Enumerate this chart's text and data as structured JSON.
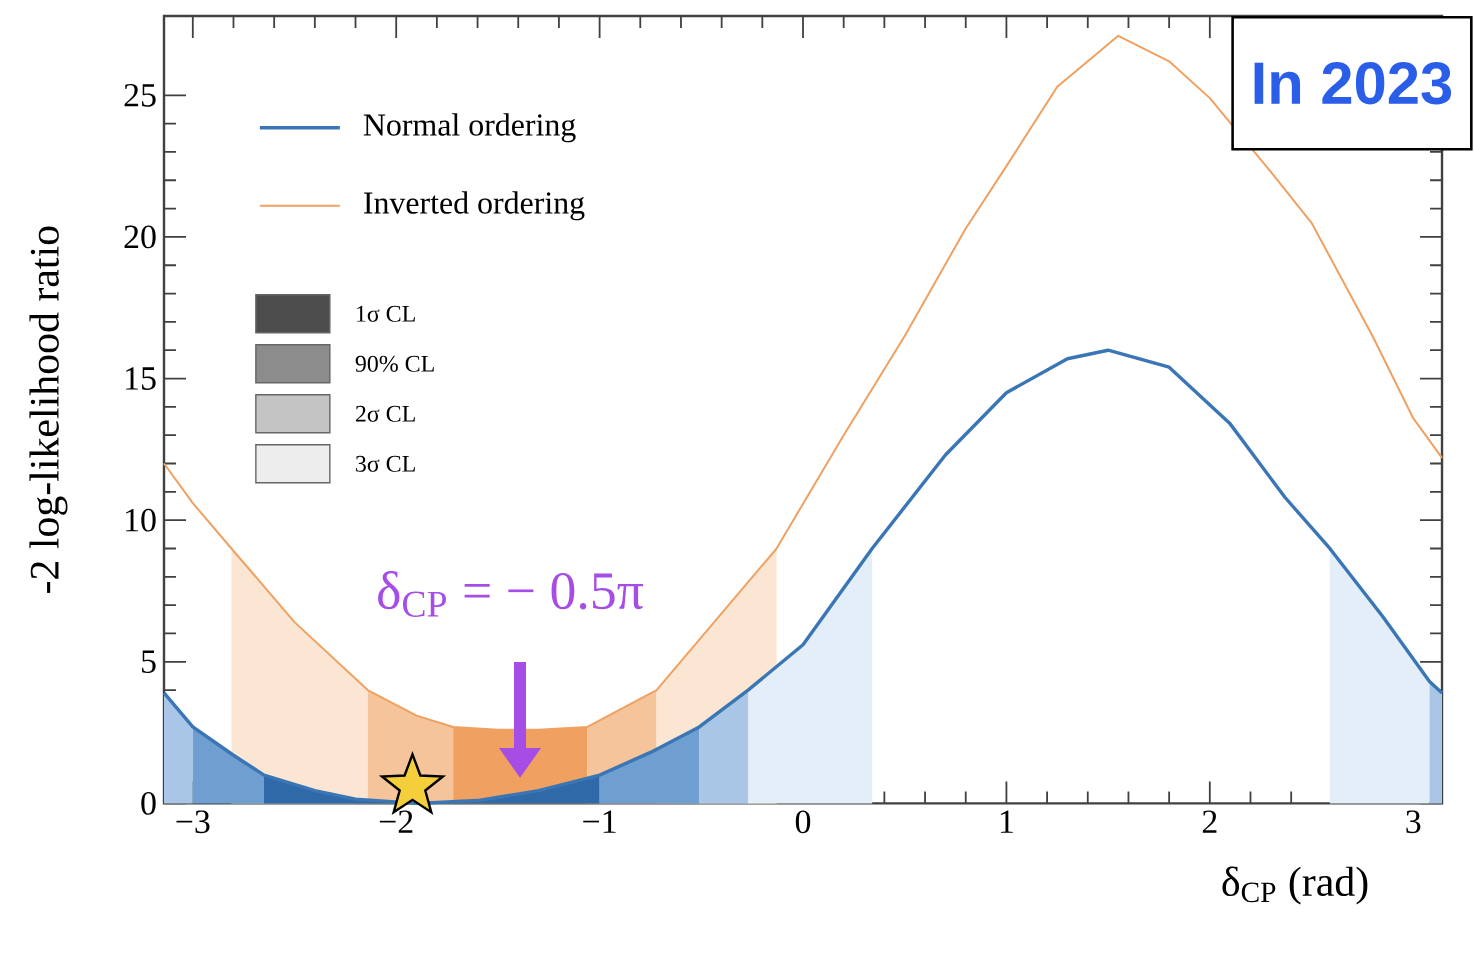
{
  "chart_data": {
    "type": "line",
    "xlabel": "δ$_{CP}$ (rad)",
    "ylabel": "-2 log-likelihood ratio",
    "xlim": [
      -3.1416,
      3.1416
    ],
    "ylim": [
      0,
      27.8
    ],
    "xticks": [
      {
        "value": -3,
        "label": "−3"
      },
      {
        "value": -2,
        "label": "−2"
      },
      {
        "value": -1,
        "label": "−1"
      },
      0,
      1,
      2,
      3
    ],
    "yticks": [
      0,
      5,
      10,
      15,
      20,
      25
    ],
    "legend": "top left",
    "series": [
      {
        "name": "Normal ordering",
        "color": "#3a76b5",
        "line_style": "solid",
        "x": [
          -3.1416,
          -3.0,
          -2.8,
          -2.65,
          -2.4,
          -2.2,
          -1.9,
          -1.6,
          -1.3,
          -1.0,
          -0.75,
          -0.51,
          -0.27,
          0.0,
          0.34,
          0.7,
          1.0,
          1.3,
          1.5,
          1.8,
          2.1,
          2.37,
          2.59,
          2.85,
          3.08,
          3.1416
        ],
        "values": [
          3.9,
          2.7,
          1.7,
          1.0,
          0.45,
          0.15,
          0.0,
          0.1,
          0.45,
          1.0,
          1.8,
          2.7,
          4.0,
          5.6,
          9.0,
          12.3,
          14.5,
          15.7,
          16.0,
          15.4,
          13.4,
          10.8,
          9.0,
          6.6,
          4.3,
          3.9
        ]
      },
      {
        "name": "Inverted ordering",
        "color": "#f0a060",
        "line_style": "solid",
        "x": [
          -3.1416,
          -3.0,
          -2.81,
          -2.5,
          -2.14,
          -1.9,
          -1.72,
          -1.5,
          -1.3,
          -1.06,
          -0.72,
          -0.13,
          0.2,
          0.5,
          0.8,
          1.0,
          1.25,
          1.55,
          1.8,
          2.0,
          2.3,
          2.5,
          2.8,
          3.0,
          3.1416
        ],
        "values": [
          12.0,
          10.6,
          9.0,
          6.4,
          4.0,
          3.1,
          2.7,
          2.6,
          2.6,
          2.7,
          4.0,
          9.0,
          13.0,
          16.5,
          20.3,
          22.5,
          25.3,
          27.1,
          26.2,
          24.9,
          22.3,
          20.5,
          16.5,
          13.6,
          12.2
        ]
      },
      {
        "type": "area",
        "color": "#fbe6d3",
        "x": [
          -2.81,
          -2.5,
          -2.14
        ],
        "values": [
          9.0,
          6.4,
          4.0
        ]
      },
      {
        "type": "area",
        "color": "#f6c49a",
        "x": [
          -2.14,
          -1.9,
          -1.72
        ],
        "values": [
          4.0,
          3.1,
          2.7
        ]
      },
      {
        "type": "area",
        "color": "#f0a060",
        "x": [
          -1.72,
          -1.5,
          -1.3,
          -1.06
        ],
        "values": [
          2.7,
          2.6,
          2.6,
          2.7
        ]
      },
      {
        "type": "area",
        "color": "#f6c49a",
        "x": [
          -1.06,
          -0.72
        ],
        "values": [
          2.7,
          4.0
        ]
      },
      {
        "type": "area",
        "color": "#fbe6d3",
        "x": [
          -0.72,
          -0.13
        ],
        "values": [
          4.0,
          9.0
        ]
      },
      {
        "type": "area",
        "color": "#a9c6e6",
        "x": [
          -3.1416,
          -3.0
        ],
        "values": [
          3.9,
          2.7
        ]
      },
      {
        "type": "area",
        "color": "#6f9fd0",
        "x": [
          -3.0,
          -2.8,
          -2.65
        ],
        "values": [
          2.7,
          1.7,
          1.0
        ]
      },
      {
        "type": "area",
        "color": "#2f69a8",
        "x": [
          -2.65,
          -2.4,
          -2.2,
          -1.9,
          -1.6,
          -1.3,
          -1.0
        ],
        "values": [
          1.0,
          0.45,
          0.15,
          0.0,
          0.1,
          0.45,
          1.0
        ]
      },
      {
        "type": "area",
        "color": "#6f9fd0",
        "x": [
          -1.0,
          -0.75,
          -0.51
        ],
        "values": [
          1.0,
          1.8,
          2.7
        ]
      },
      {
        "type": "area",
        "color": "#a9c6e6",
        "x": [
          -0.51,
          -0.27
        ],
        "values": [
          2.7,
          4.0
        ]
      },
      {
        "type": "area",
        "color": "#e3eef8",
        "x": [
          -0.27,
          0.0,
          0.34
        ],
        "values": [
          4.0,
          5.6,
          9.0
        ]
      },
      {
        "type": "area",
        "color": "#e3eef8",
        "x": [
          2.59,
          2.85,
          3.08
        ],
        "values": [
          9.0,
          6.6,
          4.3
        ]
      },
      {
        "type": "area",
        "color": "#a9c6e6",
        "x": [
          3.08,
          3.1416
        ],
        "values": [
          4.3,
          3.9
        ]
      },
      {
        "type": "scatter",
        "color": "#f5cf3b",
        "marker": "star",
        "x": [
          -1.92
        ],
        "values": [
          0.6
        ]
      }
    ],
    "annotations": [
      "1σ CL",
      "90% CL",
      "2σ CL",
      "3σ CL",
      "δ$_{CP}$ = − 0.5π",
      "In 2023"
    ]
  }
}
